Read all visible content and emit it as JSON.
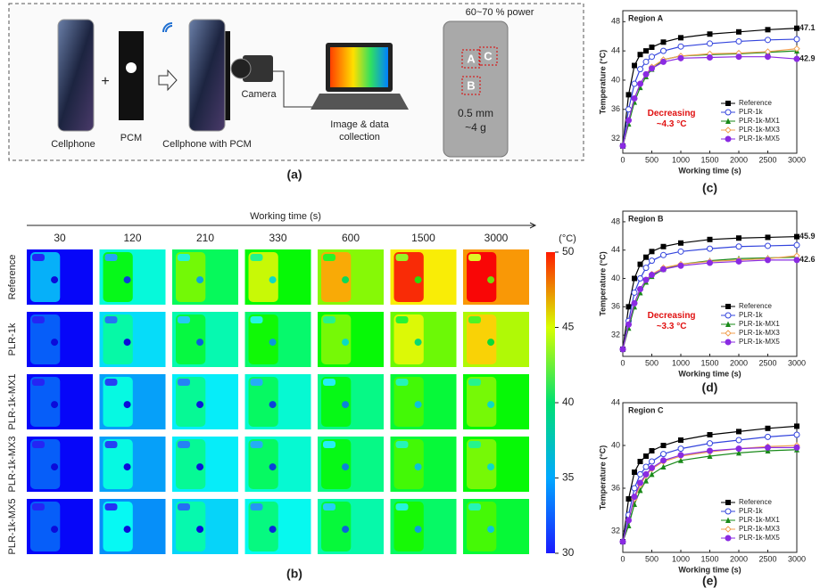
{
  "panel_a": {
    "cellphone": "Cellphone",
    "plus": "+",
    "pcm": "PCM",
    "cellphone_with_pcm": "Cellphone with PCM",
    "camera": "Camera",
    "image_data": [
      "Image & data",
      "collection"
    ],
    "power": "60~70 % power",
    "regions": [
      "A",
      "B",
      "C"
    ],
    "thickness": "0.5 mm",
    "weight": "~4 g",
    "label": "(a)"
  },
  "panel_b": {
    "axis_title": "Working time (s)",
    "times": [
      30,
      120,
      210,
      330,
      600,
      1500,
      3000
    ],
    "rows": [
      "Reference",
      "PLR-1k",
      "PLR-1k-MX1",
      "PLR-1k-MX3",
      "PLR-1k-MX5"
    ],
    "colorbar": {
      "unit": "(°C)",
      "lim": [
        30,
        50
      ],
      "ticks": [
        30,
        35,
        40,
        45,
        50
      ]
    },
    "label": "(b)"
  },
  "chart_data": [
    {
      "type": "line",
      "title": "Region A",
      "label": "(c)",
      "x_label": "Working time (s)",
      "y_label": "Temperature (°C)",
      "x": [
        0,
        100,
        200,
        300,
        400,
        500,
        700,
        1000,
        1500,
        2000,
        2500,
        3000
      ],
      "xlim": [
        0,
        3000
      ],
      "xticks": [
        0,
        500,
        1000,
        1500,
        2000,
        2500,
        3000
      ],
      "ylim": [
        30,
        49.5
      ],
      "yticks": [
        32,
        36,
        40,
        44,
        48
      ],
      "annotations": [
        "47.1",
        "42.9",
        "Decreasing",
        "~4.3 °C"
      ],
      "series": [
        {
          "name": "Reference",
          "color": "#000000",
          "marker": "square",
          "values": [
            31,
            38,
            42,
            43.5,
            44,
            44.5,
            45.2,
            45.8,
            46.3,
            46.6,
            46.9,
            47.1
          ]
        },
        {
          "name": "PLR-1k",
          "color": "#3344dd",
          "marker": "open-circle",
          "values": [
            31,
            36,
            39.5,
            41.5,
            42.5,
            43.2,
            44,
            44.6,
            45,
            45.3,
            45.5,
            45.6
          ]
        },
        {
          "name": "PLR-1k-MX1",
          "color": "#1a8a1a",
          "marker": "triangle",
          "values": [
            31,
            34,
            37,
            39,
            40.5,
            41.5,
            42.8,
            43.3,
            43.5,
            43.6,
            43.8,
            44
          ]
        },
        {
          "name": "PLR-1k-MX3",
          "color": "#f0a050",
          "marker": "open-diamond",
          "values": [
            31,
            34.5,
            37.5,
            39.5,
            40.8,
            41.8,
            42.8,
            43.3,
            43.6,
            43.7,
            43.9,
            44.3
          ]
        },
        {
          "name": "PLR-1k-MX5",
          "color": "#8a2be2",
          "marker": "circle",
          "values": [
            31,
            34.5,
            37.5,
            39.5,
            40.8,
            41.6,
            42.5,
            43,
            43.1,
            43.2,
            43.2,
            42.9
          ]
        }
      ]
    },
    {
      "type": "line",
      "title": "Region B",
      "label": "(d)",
      "x_label": "Working time (s)",
      "y_label": "Temperature (°C)",
      "x": [
        0,
        100,
        200,
        300,
        400,
        500,
        700,
        1000,
        1500,
        2000,
        2500,
        3000
      ],
      "xlim": [
        0,
        3000
      ],
      "xticks": [
        0,
        500,
        1000,
        1500,
        2000,
        2500,
        3000
      ],
      "ylim": [
        29,
        49.5
      ],
      "yticks": [
        32,
        36,
        40,
        44,
        48
      ],
      "annotations": [
        "45.9",
        "42.6",
        "Decreasing",
        "~3.3 °C"
      ],
      "series": [
        {
          "name": "Reference",
          "color": "#000000",
          "marker": "square",
          "values": [
            30,
            36,
            40,
            42,
            43,
            43.8,
            44.5,
            45,
            45.5,
            45.7,
            45.8,
            45.9
          ]
        },
        {
          "name": "PLR-1k",
          "color": "#3344dd",
          "marker": "open-circle",
          "values": [
            30,
            34,
            38,
            40,
            41.5,
            42.5,
            43.3,
            43.8,
            44.2,
            44.5,
            44.6,
            44.7
          ]
        },
        {
          "name": "PLR-1k-MX1",
          "color": "#1a8a1a",
          "marker": "triangle",
          "values": [
            30,
            33,
            36,
            38,
            39.5,
            40.3,
            41.3,
            42,
            42.5,
            42.8,
            42.9,
            43
          ]
        },
        {
          "name": "PLR-1k-MX3",
          "color": "#f0a050",
          "marker": "open-diamond",
          "values": [
            30,
            33.5,
            36.5,
            38.5,
            39.8,
            40.6,
            41.5,
            42,
            42.4,
            42.6,
            42.8,
            43.2
          ]
        },
        {
          "name": "PLR-1k-MX5",
          "color": "#8a2be2",
          "marker": "circle",
          "values": [
            30,
            33.5,
            36.5,
            38.5,
            39.8,
            40.5,
            41.3,
            41.8,
            42.2,
            42.4,
            42.6,
            42.6
          ]
        }
      ]
    },
    {
      "type": "line",
      "title": "Region C",
      "label": "(e)",
      "x_label": "Working time (s)",
      "y_label": "Temperature (°C)",
      "x": [
        0,
        100,
        200,
        300,
        400,
        500,
        700,
        1000,
        1500,
        2000,
        2500,
        3000
      ],
      "xlim": [
        0,
        3000
      ],
      "xticks": [
        0,
        500,
        1000,
        1500,
        2000,
        2500,
        3000
      ],
      "ylim": [
        30,
        44
      ],
      "yticks": [
        32,
        36,
        40,
        44
      ],
      "series": [
        {
          "name": "Reference",
          "color": "#000000",
          "marker": "square",
          "values": [
            31,
            35,
            37.5,
            38.5,
            39,
            39.5,
            40,
            40.5,
            41,
            41.3,
            41.6,
            41.8
          ]
        },
        {
          "name": "PLR-1k",
          "color": "#3344dd",
          "marker": "open-circle",
          "values": [
            31,
            33.5,
            36,
            37.3,
            38,
            38.5,
            39.2,
            39.7,
            40.2,
            40.5,
            40.8,
            41
          ]
        },
        {
          "name": "PLR-1k-MX1",
          "color": "#1a8a1a",
          "marker": "triangle",
          "values": [
            31,
            32.5,
            34.5,
            35.8,
            36.7,
            37.3,
            38,
            38.6,
            39,
            39.3,
            39.5,
            39.6
          ]
        },
        {
          "name": "PLR-1k-MX3",
          "color": "#f0a050",
          "marker": "open-diamond",
          "values": [
            31,
            33,
            35,
            36.3,
            37.2,
            37.8,
            38.5,
            39,
            39.4,
            39.7,
            39.9,
            40
          ]
        },
        {
          "name": "PLR-1k-MX5",
          "color": "#8a2be2",
          "marker": "circle",
          "values": [
            31,
            33,
            35.2,
            36.5,
            37.3,
            37.9,
            38.6,
            39.1,
            39.5,
            39.7,
            39.8,
            39.8
          ]
        }
      ]
    }
  ]
}
